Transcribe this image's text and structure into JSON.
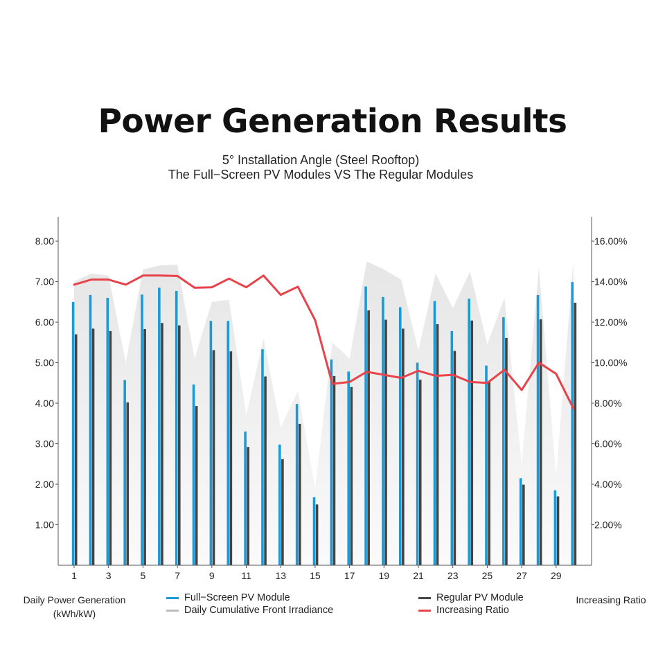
{
  "title": "Power Generation Results",
  "subtitle_line1": "5°   Installation Angle (Steel Rooftop)",
  "subtitle_line2": "The Full−Screen PV Modules VS The Regular Modules",
  "colors": {
    "full_screen": "#1a9ad6",
    "regular": "#444444",
    "irradiance": "#e6e6e6",
    "ratio": "#e8424a"
  },
  "chart_data": {
    "type": "bar",
    "xlabel": "",
    "ylabel_left": "Daily Power Generation (kWh/kW)",
    "ylabel_right": "Increasing Ratio",
    "ylim_left": [
      0,
      8.6
    ],
    "ylim_right": [
      0,
      17.2
    ],
    "y_ticks_left": [
      "1.00",
      "2.00",
      "3.00",
      "4.00",
      "5.00",
      "6.00",
      "7.00",
      "8.00"
    ],
    "y_ticks_right": [
      "2.00%",
      "4.00%",
      "6.00%",
      "8.00%",
      "10.00%",
      "12.00%",
      "14.00%",
      "16.00%"
    ],
    "x_tick_labels": [
      "1",
      "3",
      "5",
      "7",
      "9",
      "11",
      "13",
      "15",
      "17",
      "19",
      "21",
      "23",
      "25",
      "27",
      "29"
    ],
    "x": [
      1,
      2,
      3,
      4,
      5,
      6,
      7,
      8,
      9,
      10,
      11,
      12,
      13,
      14,
      15,
      16,
      17,
      18,
      19,
      20,
      21,
      22,
      23,
      24,
      25,
      26,
      27,
      28,
      29,
      30
    ],
    "grid": false,
    "legend": [
      "Full−Screen PV Module",
      "Daily Cumulative Front Irradiance",
      "Regular PV Module",
      "Increasing Ratio"
    ],
    "series": [
      {
        "name": "Full−Screen PV Module",
        "type": "bar",
        "axis": "left",
        "values": [
          6.5,
          6.67,
          6.6,
          4.57,
          6.68,
          6.85,
          6.77,
          4.46,
          6.03,
          6.03,
          3.3,
          5.33,
          2.98,
          3.98,
          1.68,
          5.08,
          4.78,
          6.88,
          6.62,
          6.37,
          5.0,
          6.52,
          5.78,
          6.58,
          4.93,
          6.12,
          2.15,
          6.67,
          1.85,
          6.99
        ]
      },
      {
        "name": "Regular PV Module",
        "type": "bar",
        "axis": "left",
        "values": [
          5.7,
          5.84,
          5.78,
          4.02,
          5.83,
          5.98,
          5.92,
          3.93,
          5.31,
          5.28,
          2.92,
          4.66,
          2.62,
          3.49,
          1.5,
          4.67,
          4.4,
          6.29,
          6.06,
          5.84,
          4.58,
          5.95,
          5.29,
          6.04,
          4.53,
          5.61,
          1.99,
          6.07,
          1.7,
          6.48
        ]
      },
      {
        "name": "Daily Cumulative Front Irradiance",
        "type": "area",
        "axis": "left",
        "values": [
          7.0,
          7.2,
          7.15,
          5.0,
          7.3,
          7.4,
          7.42,
          5.1,
          6.5,
          6.55,
          3.7,
          5.6,
          3.4,
          4.3,
          1.9,
          5.5,
          5.1,
          7.5,
          7.3,
          7.05,
          5.3,
          7.2,
          6.35,
          7.25,
          5.45,
          6.6,
          2.5,
          7.35,
          2.2,
          7.5
        ]
      },
      {
        "name": "Increasing Ratio",
        "type": "line",
        "axis": "right",
        "values": [
          13.85,
          14.1,
          14.1,
          13.85,
          14.3,
          14.3,
          14.28,
          13.7,
          13.72,
          14.15,
          13.72,
          14.3,
          13.35,
          13.75,
          12.1,
          8.95,
          9.05,
          9.55,
          9.4,
          9.25,
          9.6,
          9.35,
          9.4,
          9.05,
          9.0,
          9.65,
          8.65,
          10.0,
          9.45,
          7.75
        ]
      }
    ]
  }
}
